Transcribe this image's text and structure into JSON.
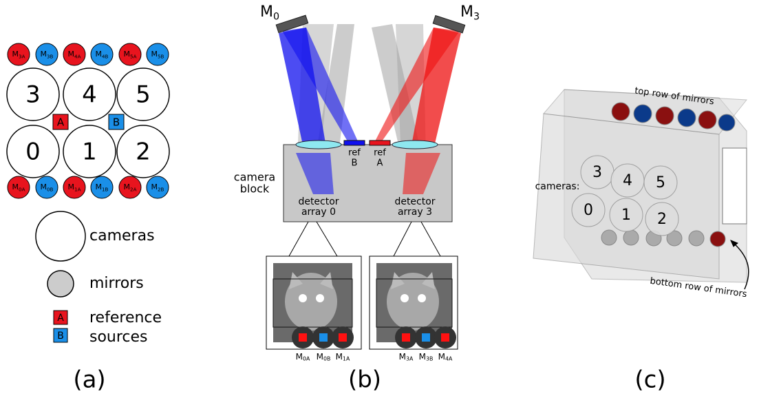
{
  "panel_a": {
    "label": "(a)",
    "top_mirrors": [
      {
        "main": "M",
        "sub": "3A",
        "color": "#e8141e"
      },
      {
        "main": "M",
        "sub": "3B",
        "color": "#1a8fe8"
      },
      {
        "main": "M",
        "sub": "4A",
        "color": "#e8141e"
      },
      {
        "main": "M",
        "sub": "4B",
        "color": "#1a8fe8"
      },
      {
        "main": "M",
        "sub": "5A",
        "color": "#e8141e"
      },
      {
        "main": "M",
        "sub": "5B",
        "color": "#1a8fe8"
      }
    ],
    "cameras": [
      "3",
      "4",
      "5",
      "0",
      "1",
      "2"
    ],
    "sources": [
      {
        "text": "A",
        "color": "#e8141e"
      },
      {
        "text": "B",
        "color": "#1a8fe8"
      }
    ],
    "bottom_mirrors": [
      {
        "main": "M",
        "sub": "0A",
        "color": "#e8141e"
      },
      {
        "main": "M",
        "sub": "0B",
        "color": "#1a8fe8"
      },
      {
        "main": "M",
        "sub": "1A",
        "color": "#e8141e"
      },
      {
        "main": "M",
        "sub": "1B",
        "color": "#1a8fe8"
      },
      {
        "main": "M",
        "sub": "2A",
        "color": "#e8141e"
      },
      {
        "main": "M",
        "sub": "2B",
        "color": "#1a8fe8"
      }
    ],
    "legend": {
      "cameras": "cameras",
      "mirrors": "mirrors",
      "sources_line1": "reference",
      "sources_line2": "sources"
    }
  },
  "panel_b": {
    "label": "(b)",
    "mirror_left": {
      "main": "M",
      "sub": "0"
    },
    "mirror_right": {
      "main": "M",
      "sub": "3"
    },
    "ref_b": [
      "ref",
      "B"
    ],
    "ref_a": [
      "ref",
      "A"
    ],
    "camera_block": [
      "camera",
      "block"
    ],
    "detector_left": [
      "detector",
      "array 0"
    ],
    "detector_right": [
      "detector",
      "array 3"
    ],
    "image_left_labels": [
      {
        "main": "M",
        "sub": "0A"
      },
      {
        "main": "M",
        "sub": "0B"
      },
      {
        "main": "M",
        "sub": "1A"
      }
    ],
    "image_right_labels": [
      {
        "main": "M",
        "sub": "3A"
      },
      {
        "main": "M",
        "sub": "3B"
      },
      {
        "main": "M",
        "sub": "4A"
      }
    ]
  },
  "panel_c": {
    "label": "(c)",
    "top_row": "top row of mirrors",
    "cameras_label": "cameras:",
    "cameras": [
      "3",
      "4",
      "5",
      "0",
      "1",
      "2"
    ],
    "bottom_row": "bottom row of mirrors"
  }
}
